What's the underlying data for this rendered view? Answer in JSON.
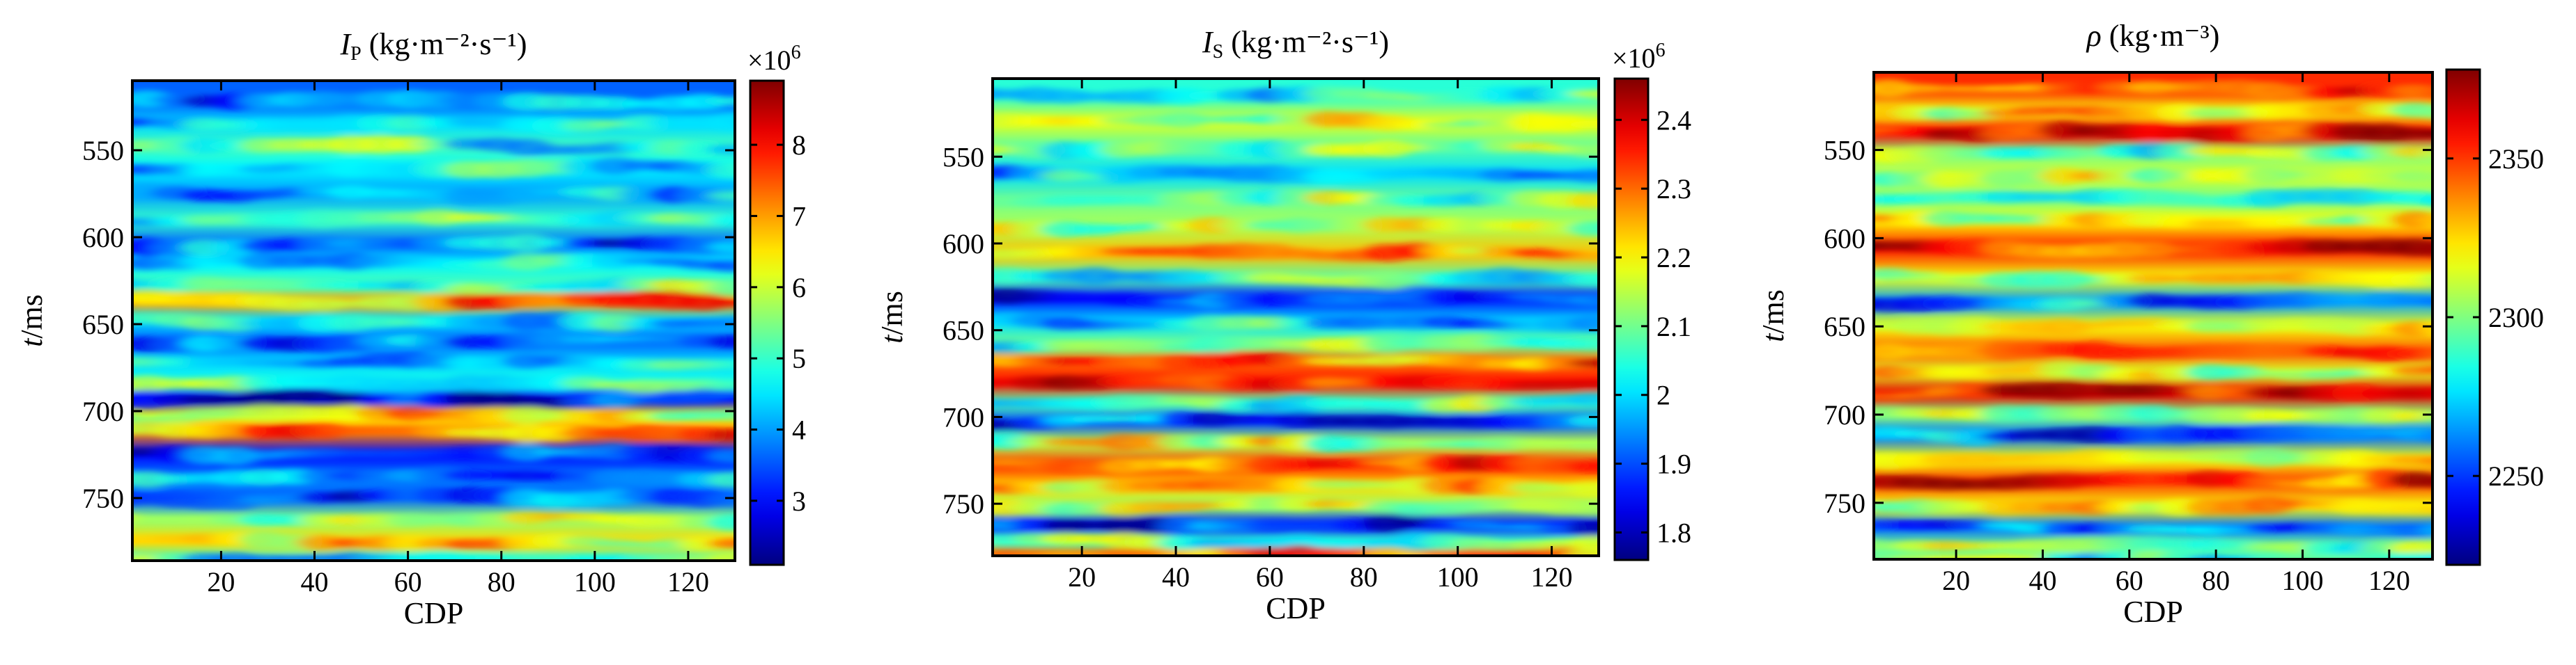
{
  "chart_data": [
    {
      "type": "heatmap",
      "title_symbol": "I",
      "title_sub": "P",
      "title_units": "(kg·m⁻²·s⁻¹)",
      "xlabel": "CDP",
      "ylabel_italic": "t",
      "ylabel_rest": "/ms",
      "xlim": [
        1,
        130
      ],
      "ylim": [
        510,
        786
      ],
      "xticks": [
        "20",
        "40",
        "60",
        "80",
        "100",
        "120"
      ],
      "xtick_values": [
        20,
        40,
        60,
        80,
        100,
        120
      ],
      "yticks": [
        "550",
        "600",
        "650",
        "700",
        "750"
      ],
      "ytick_values": [
        550,
        600,
        650,
        700,
        750
      ],
      "colorbar": {
        "multiplier": "×10",
        "exponent": "6",
        "range": [
          2.1,
          8.9
        ],
        "ticks": [
          "3",
          "4",
          "5",
          "6",
          "7",
          "8"
        ],
        "tick_values": [
          3,
          4,
          5,
          6,
          7,
          8
        ]
      },
      "layers": [
        {
          "t": 522,
          "v": 3.6
        },
        {
          "t": 535,
          "v": 4.4
        },
        {
          "t": 548,
          "v": 5.1
        },
        {
          "t": 560,
          "v": 4.6
        },
        {
          "t": 575,
          "v": 4.0
        },
        {
          "t": 590,
          "v": 5.0
        },
        {
          "t": 604,
          "v": 3.6
        },
        {
          "t": 615,
          "v": 4.6
        },
        {
          "t": 628,
          "v": 5.2
        },
        {
          "t": 637,
          "v": 7.0
        },
        {
          "t": 648,
          "v": 4.4
        },
        {
          "t": 660,
          "v": 3.6
        },
        {
          "t": 672,
          "v": 4.4
        },
        {
          "t": 684,
          "v": 4.8
        },
        {
          "t": 693,
          "v": 3.0
        },
        {
          "t": 703,
          "v": 6.4
        },
        {
          "t": 712,
          "v": 7.2
        },
        {
          "t": 725,
          "v": 3.0
        },
        {
          "t": 738,
          "v": 3.8
        },
        {
          "t": 750,
          "v": 3.6
        },
        {
          "t": 762,
          "v": 5.6
        },
        {
          "t": 775,
          "v": 6.6
        },
        {
          "t": 786,
          "v": 5.0
        }
      ]
    },
    {
      "type": "heatmap",
      "title_symbol": "I",
      "title_sub": "S",
      "title_units": "(kg·m⁻²·s⁻¹)",
      "xlabel": "CDP",
      "ylabel_italic": "t",
      "ylabel_rest": "/ms",
      "xlim": [
        1,
        130
      ],
      "ylim": [
        505,
        780
      ],
      "xticks": [
        "20",
        "40",
        "60",
        "80",
        "100",
        "120"
      ],
      "xtick_values": [
        20,
        40,
        60,
        80,
        100,
        120
      ],
      "yticks": [
        "550",
        "600",
        "650",
        "700",
        "750"
      ],
      "ytick_values": [
        550,
        600,
        650,
        700,
        750
      ],
      "colorbar": {
        "multiplier": "×10",
        "exponent": "6",
        "range": [
          1.76,
          2.46
        ],
        "ticks": [
          "1.8",
          "1.9",
          "2",
          "2.1",
          "2.2",
          "2.3",
          "2.4"
        ],
        "tick_values": [
          1.8,
          1.9,
          2.0,
          2.1,
          2.2,
          2.3,
          2.4
        ]
      },
      "layers": [
        {
          "t": 515,
          "v": 2.05
        },
        {
          "t": 530,
          "v": 2.18
        },
        {
          "t": 545,
          "v": 2.08
        },
        {
          "t": 560,
          "v": 2.0
        },
        {
          "t": 575,
          "v": 2.1
        },
        {
          "t": 590,
          "v": 2.14
        },
        {
          "t": 606,
          "v": 2.24
        },
        {
          "t": 620,
          "v": 2.08
        },
        {
          "t": 632,
          "v": 1.86
        },
        {
          "t": 645,
          "v": 2.0
        },
        {
          "t": 658,
          "v": 2.1
        },
        {
          "t": 668,
          "v": 2.3
        },
        {
          "t": 680,
          "v": 2.36
        },
        {
          "t": 692,
          "v": 2.08
        },
        {
          "t": 703,
          "v": 1.9
        },
        {
          "t": 715,
          "v": 2.15
        },
        {
          "t": 728,
          "v": 2.34
        },
        {
          "t": 740,
          "v": 2.22
        },
        {
          "t": 752,
          "v": 2.12
        },
        {
          "t": 762,
          "v": 1.86
        },
        {
          "t": 772,
          "v": 2.06
        },
        {
          "t": 780,
          "v": 2.3
        }
      ]
    },
    {
      "type": "heatmap",
      "title_symbol": "ρ",
      "title_sub": "",
      "title_units": "(kg·m⁻³)",
      "xlabel": "CDP",
      "ylabel_italic": "t",
      "ylabel_rest": "/ms",
      "xlim": [
        1,
        130
      ],
      "ylim": [
        506,
        782
      ],
      "xticks": [
        "20",
        "40",
        "60",
        "80",
        "100",
        "120"
      ],
      "xtick_values": [
        20,
        40,
        60,
        80,
        100,
        120
      ],
      "yticks": [
        "550",
        "600",
        "650",
        "700",
        "750"
      ],
      "ytick_values": [
        550,
        600,
        650,
        700,
        750
      ],
      "colorbar": {
        "multiplier": "",
        "exponent": "",
        "range": [
          2222,
          2378
        ],
        "ticks": [
          "2250",
          "2300",
          "2350"
        ],
        "tick_values": [
          2250,
          2300,
          2350
        ]
      },
      "layers": [
        {
          "t": 516,
          "v": 2352
        },
        {
          "t": 528,
          "v": 2318
        },
        {
          "t": 540,
          "v": 2358
        },
        {
          "t": 552,
          "v": 2300
        },
        {
          "t": 565,
          "v": 2312
        },
        {
          "t": 578,
          "v": 2298
        },
        {
          "t": 590,
          "v": 2320
        },
        {
          "t": 606,
          "v": 2356
        },
        {
          "t": 622,
          "v": 2318
        },
        {
          "t": 636,
          "v": 2266
        },
        {
          "t": 650,
          "v": 2318
        },
        {
          "t": 664,
          "v": 2345
        },
        {
          "t": 676,
          "v": 2314
        },
        {
          "t": 688,
          "v": 2362
        },
        {
          "t": 700,
          "v": 2300
        },
        {
          "t": 712,
          "v": 2258
        },
        {
          "t": 725,
          "v": 2318
        },
        {
          "t": 738,
          "v": 2350
        },
        {
          "t": 752,
          "v": 2318
        },
        {
          "t": 764,
          "v": 2258
        },
        {
          "t": 775,
          "v": 2298
        },
        {
          "t": 782,
          "v": 2290
        }
      ]
    }
  ]
}
